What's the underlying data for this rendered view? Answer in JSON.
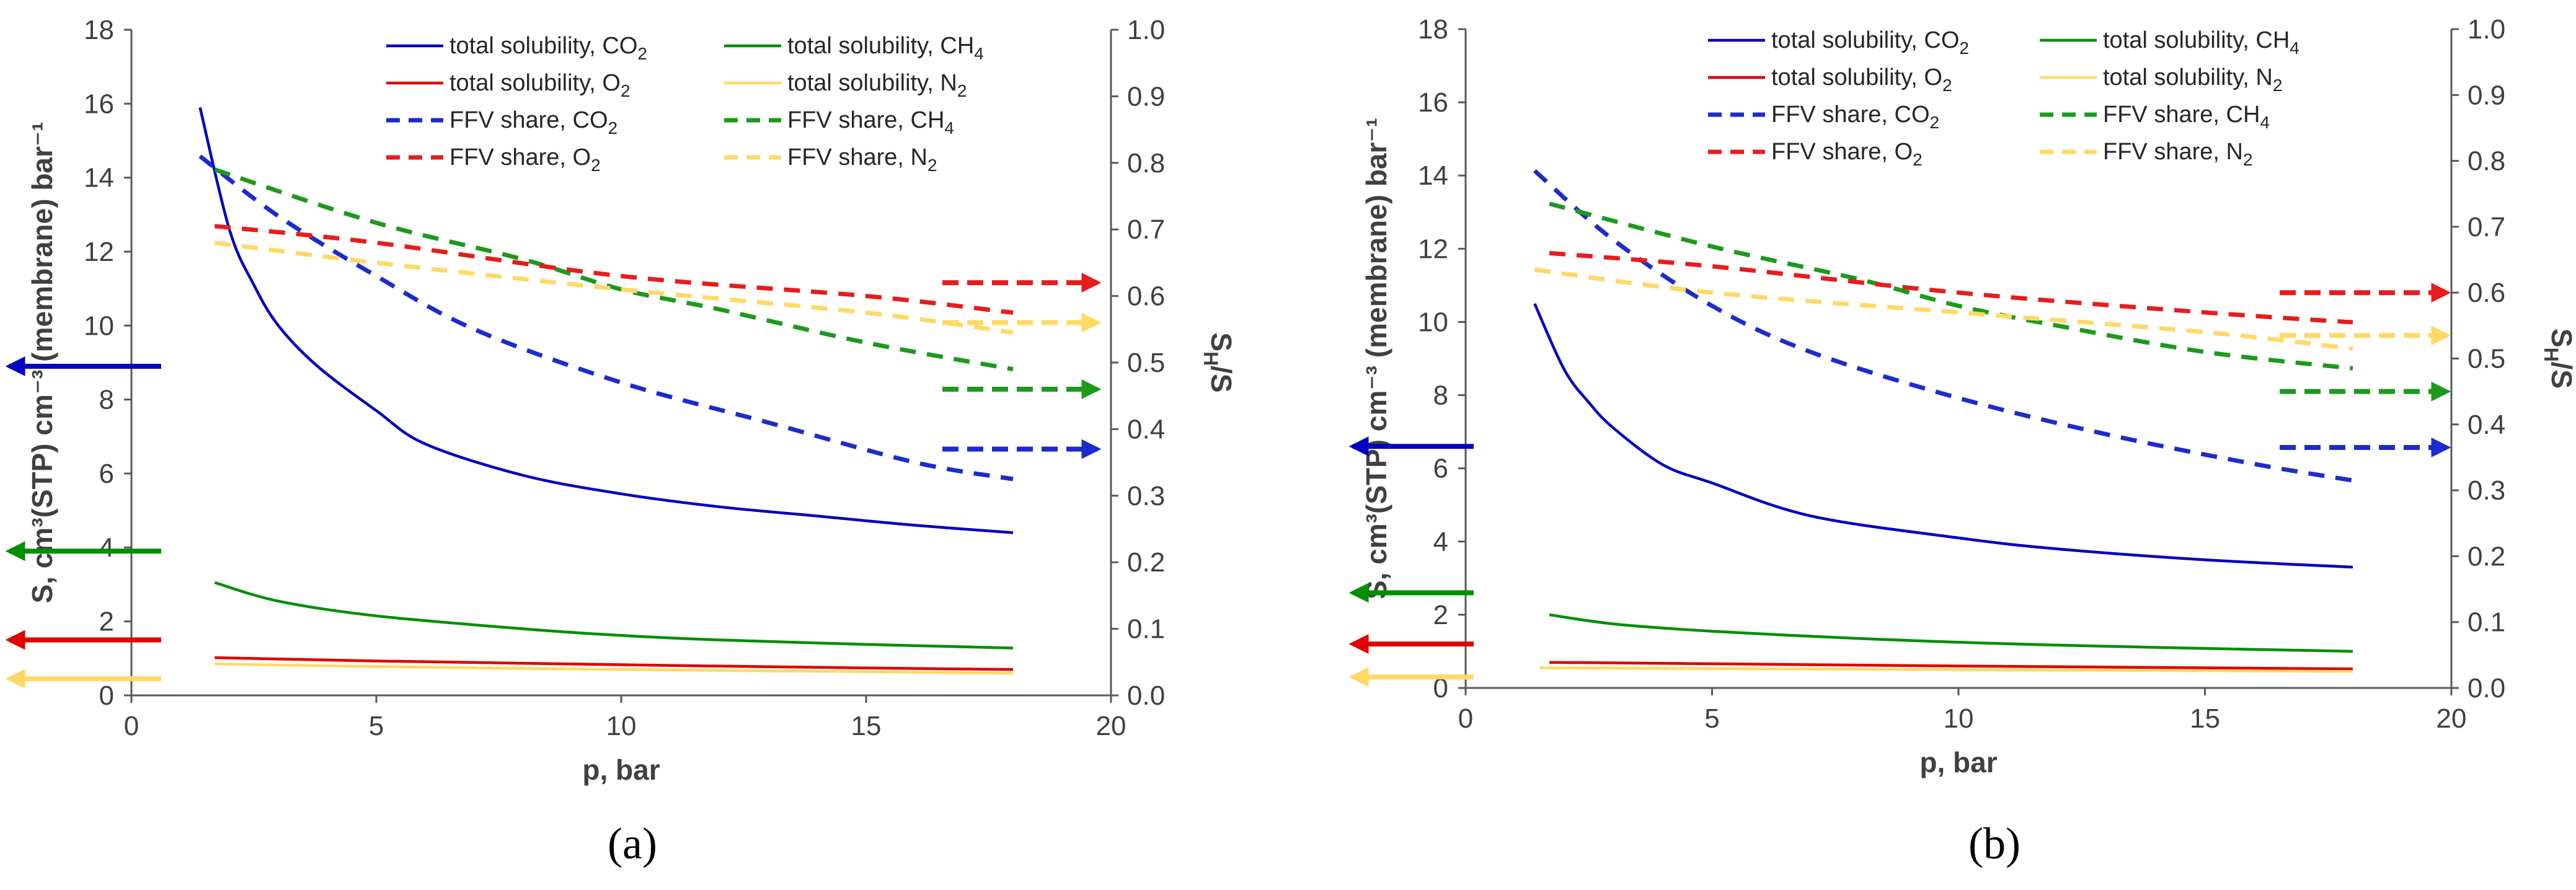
{
  "chart_data": [
    {
      "panel_label": "(a)",
      "type": "line",
      "xlabel": "p, bar",
      "ylabel_left": "S, cm³(STP) cm⁻³ (membrane) bar⁻¹",
      "ylabel_right": "S_H/S",
      "xlim": [
        0,
        20
      ],
      "ylim_left": [
        0,
        18
      ],
      "ylim_right": [
        0,
        1.0
      ],
      "x_ticks": [
        "0",
        "5",
        "10",
        "15",
        "20"
      ],
      "y_left_ticks": [
        "0",
        "2",
        "4",
        "6",
        "8",
        "10",
        "12",
        "14",
        "16",
        "18"
      ],
      "y_right_ticks": [
        "0.0",
        "0.1",
        "0.2",
        "0.3",
        "0.4",
        "0.5",
        "0.6",
        "0.7",
        "0.8",
        "0.9",
        "1.0"
      ],
      "grid": false,
      "legend_position": "top",
      "series": [
        {
          "name": "total solubility, CO",
          "sub": "2",
          "key": "ts_co2",
          "color": "#0000c0",
          "dash": false,
          "axis": "left",
          "x": [
            1.4,
            2,
            2.5,
            3,
            3.8,
            5,
            6,
            8,
            10,
            12,
            14,
            16,
            18
          ],
          "y": [
            15.9,
            12.6,
            11.1,
            10.0,
            8.9,
            7.7,
            6.8,
            5.95,
            5.45,
            5.1,
            4.85,
            4.6,
            4.4
          ]
        },
        {
          "name": "total solubility, CH",
          "sub": "4",
          "key": "ts_ch4",
          "color": "#008f00",
          "dash": false,
          "axis": "left",
          "x": [
            1.7,
            3,
            5,
            8,
            10,
            12,
            15,
            18
          ],
          "y": [
            3.05,
            2.55,
            2.15,
            1.8,
            1.62,
            1.5,
            1.38,
            1.28
          ]
        },
        {
          "name": "total solubility, O",
          "sub": "2",
          "key": "ts_o2",
          "color": "#e00000",
          "dash": false,
          "axis": "left",
          "x": [
            1.7,
            5,
            10,
            15,
            18
          ],
          "y": [
            1.02,
            0.93,
            0.83,
            0.74,
            0.7
          ]
        },
        {
          "name": "total solubility, N",
          "sub": "2",
          "key": "ts_n2",
          "color": "#ffd966",
          "dash": false,
          "axis": "left",
          "x": [
            1.7,
            5,
            10,
            15,
            18
          ],
          "y": [
            0.85,
            0.78,
            0.7,
            0.64,
            0.6
          ]
        },
        {
          "name": "FFV share, CO",
          "sub": "2",
          "key": "ffv_co2",
          "color": "#1c2ccc",
          "dash": true,
          "axis": "right",
          "x": [
            1.4,
            3,
            5,
            7,
            10,
            13,
            16,
            18
          ],
          "y": [
            0.81,
            0.72,
            0.63,
            0.55,
            0.47,
            0.41,
            0.35,
            0.325
          ]
        },
        {
          "name": "FFV share, CH",
          "sub": "4",
          "key": "ffv_ch4",
          "color": "#1c9a1c",
          "dash": true,
          "axis": "right",
          "x": [
            1.7,
            5,
            8,
            10,
            12,
            15,
            18
          ],
          "y": [
            0.79,
            0.71,
            0.655,
            0.61,
            0.58,
            0.53,
            0.49
          ]
        },
        {
          "name": "FFV share, O",
          "sub": "2",
          "key": "ffv_o2",
          "color": "#e81c1c",
          "dash": true,
          "axis": "right",
          "x": [
            1.7,
            5,
            10,
            15,
            18
          ],
          "y": [
            0.705,
            0.68,
            0.63,
            0.6,
            0.575
          ]
        },
        {
          "name": "FFV share, N",
          "sub": "2",
          "key": "ffv_n2",
          "color": "#ffd966",
          "dash": true,
          "axis": "right",
          "x": [
            1.7,
            5,
            10,
            15,
            18
          ],
          "y": [
            0.68,
            0.65,
            0.61,
            0.575,
            0.545
          ]
        }
      ],
      "axis_indicators": [
        {
          "key": "ts_co2",
          "side": "left",
          "value": 8.9
        },
        {
          "key": "ts_ch4",
          "side": "left",
          "value": 3.9
        },
        {
          "key": "ts_o2",
          "side": "left",
          "value": 1.5
        },
        {
          "key": "ts_n2",
          "side": "left",
          "value": 0.45
        },
        {
          "key": "ffv_o2",
          "side": "right",
          "value": 0.62
        },
        {
          "key": "ffv_n2",
          "side": "right",
          "value": 0.56
        },
        {
          "key": "ffv_ch4",
          "side": "right",
          "value": 0.46
        },
        {
          "key": "ffv_co2",
          "side": "right",
          "value": 0.37
        }
      ]
    },
    {
      "panel_label": "(b)",
      "type": "line",
      "xlabel": "p, bar",
      "ylabel_left": "S, cm³(STP) cm⁻³ (membrane) bar⁻¹",
      "ylabel_right": "S_H/S",
      "xlim": [
        0,
        20
      ],
      "ylim_left": [
        0,
        18
      ],
      "ylim_right": [
        0,
        1.0
      ],
      "x_ticks": [
        "0",
        "5",
        "10",
        "15",
        "20"
      ],
      "y_left_ticks": [
        "0",
        "2",
        "4",
        "6",
        "8",
        "10",
        "12",
        "14",
        "16",
        "18"
      ],
      "y_right_ticks": [
        "0.0",
        "0.1",
        "0.2",
        "0.3",
        "0.4",
        "0.5",
        "0.6",
        "0.7",
        "0.8",
        "0.9",
        "1.0"
      ],
      "grid": false,
      "legend_position": "top",
      "series": [
        {
          "name": "total solubility, CO",
          "sub": "2",
          "key": "ts_co2",
          "color": "#0000c0",
          "dash": false,
          "axis": "left",
          "x": [
            1.4,
            2,
            2.5,
            3,
            4,
            5,
            7,
            10,
            12,
            15,
            18
          ],
          "y": [
            10.5,
            8.7,
            7.8,
            7.1,
            6.1,
            5.6,
            4.7,
            4.1,
            3.8,
            3.5,
            3.3
          ]
        },
        {
          "name": "total solubility, CH",
          "sub": "4",
          "key": "ts_ch4",
          "color": "#008f00",
          "dash": false,
          "axis": "left",
          "x": [
            1.7,
            3,
            5,
            8,
            10,
            12,
            15,
            18
          ],
          "y": [
            2.0,
            1.75,
            1.55,
            1.35,
            1.25,
            1.17,
            1.08,
            1.0
          ]
        },
        {
          "name": "total solubility, O",
          "sub": "2",
          "key": "ts_o2",
          "color": "#e00000",
          "dash": false,
          "axis": "left",
          "x": [
            1.7,
            5,
            10,
            15,
            18
          ],
          "y": [
            0.7,
            0.66,
            0.6,
            0.55,
            0.52
          ]
        },
        {
          "name": "total solubility, N",
          "sub": "2",
          "key": "ts_n2",
          "color": "#ffd966",
          "dash": false,
          "axis": "left",
          "x": [
            1.5,
            5,
            10,
            15,
            18
          ],
          "y": [
            0.55,
            0.53,
            0.5,
            0.47,
            0.45
          ]
        },
        {
          "name": "FFV share, CO",
          "sub": "2",
          "key": "ffv_co2",
          "color": "#1c2ccc",
          "dash": true,
          "axis": "right",
          "x": [
            1.4,
            3,
            5,
            7,
            10,
            13,
            16,
            18
          ],
          "y": [
            0.785,
            0.68,
            0.58,
            0.51,
            0.44,
            0.385,
            0.34,
            0.315
          ]
        },
        {
          "name": "FFV share, CH",
          "sub": "4",
          "key": "ffv_ch4",
          "color": "#1c9a1c",
          "dash": true,
          "axis": "right",
          "x": [
            1.7,
            5,
            8,
            10,
            12,
            15,
            18
          ],
          "y": [
            0.735,
            0.67,
            0.62,
            0.58,
            0.55,
            0.51,
            0.485
          ]
        },
        {
          "name": "FFV share, O",
          "sub": "2",
          "key": "ffv_o2",
          "color": "#e81c1c",
          "dash": true,
          "axis": "right",
          "x": [
            1.7,
            5,
            10,
            15,
            18
          ],
          "y": [
            0.66,
            0.64,
            0.6,
            0.57,
            0.555
          ]
        },
        {
          "name": "FFV share, N",
          "sub": "2",
          "key": "ffv_n2",
          "color": "#ffd966",
          "dash": true,
          "axis": "right",
          "x": [
            1.4,
            5,
            10,
            15,
            18
          ],
          "y": [
            0.635,
            0.6,
            0.57,
            0.54,
            0.515
          ]
        }
      ],
      "axis_indicators": [
        {
          "key": "ts_co2",
          "side": "left",
          "value": 6.6
        },
        {
          "key": "ts_ch4",
          "side": "left",
          "value": 2.6
        },
        {
          "key": "ts_o2",
          "side": "left",
          "value": 1.2
        },
        {
          "key": "ts_n2",
          "side": "left",
          "value": 0.3
        },
        {
          "key": "ffv_o2",
          "side": "right",
          "value": 0.6
        },
        {
          "key": "ffv_n2",
          "side": "right",
          "value": 0.535
        },
        {
          "key": "ffv_ch4",
          "side": "right",
          "value": 0.45
        },
        {
          "key": "ffv_co2",
          "side": "right",
          "value": 0.365
        }
      ]
    }
  ]
}
